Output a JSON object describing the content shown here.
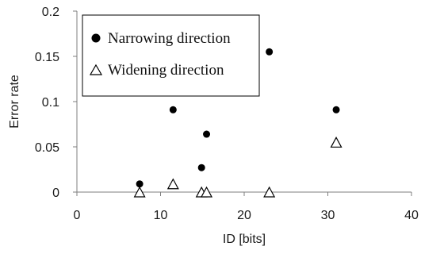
{
  "chart_data": {
    "type": "scatter",
    "title": "",
    "xlabel": "ID [bits]",
    "ylabel": "Error rate",
    "xlim": [
      0,
      40
    ],
    "ylim": [
      0,
      0.2
    ],
    "x_ticks": [
      "0",
      "10",
      "20",
      "30",
      "40"
    ],
    "y_ticks": [
      "0",
      "0.05",
      "0.1",
      "0.15",
      "0.2"
    ],
    "grid": false,
    "legend_position": "top-left",
    "series": [
      {
        "name": "Narrowing direction",
        "marker": "filled-circle",
        "color": "#000000",
        "points": [
          {
            "x": 7.5,
            "y": 0.009
          },
          {
            "x": 11.5,
            "y": 0.091
          },
          {
            "x": 14.9,
            "y": 0.027
          },
          {
            "x": 15.5,
            "y": 0.064
          },
          {
            "x": 23.0,
            "y": 0.155
          },
          {
            "x": 31.0,
            "y": 0.091
          }
        ]
      },
      {
        "name": "Widening direction",
        "marker": "open-triangle",
        "color": "#000000",
        "points": [
          {
            "x": 7.5,
            "y": 0.0
          },
          {
            "x": 11.5,
            "y": 0.009
          },
          {
            "x": 14.9,
            "y": 0.0
          },
          {
            "x": 15.5,
            "y": 0.0
          },
          {
            "x": 23.0,
            "y": 0.0
          },
          {
            "x": 31.0,
            "y": 0.055
          }
        ]
      }
    ]
  }
}
